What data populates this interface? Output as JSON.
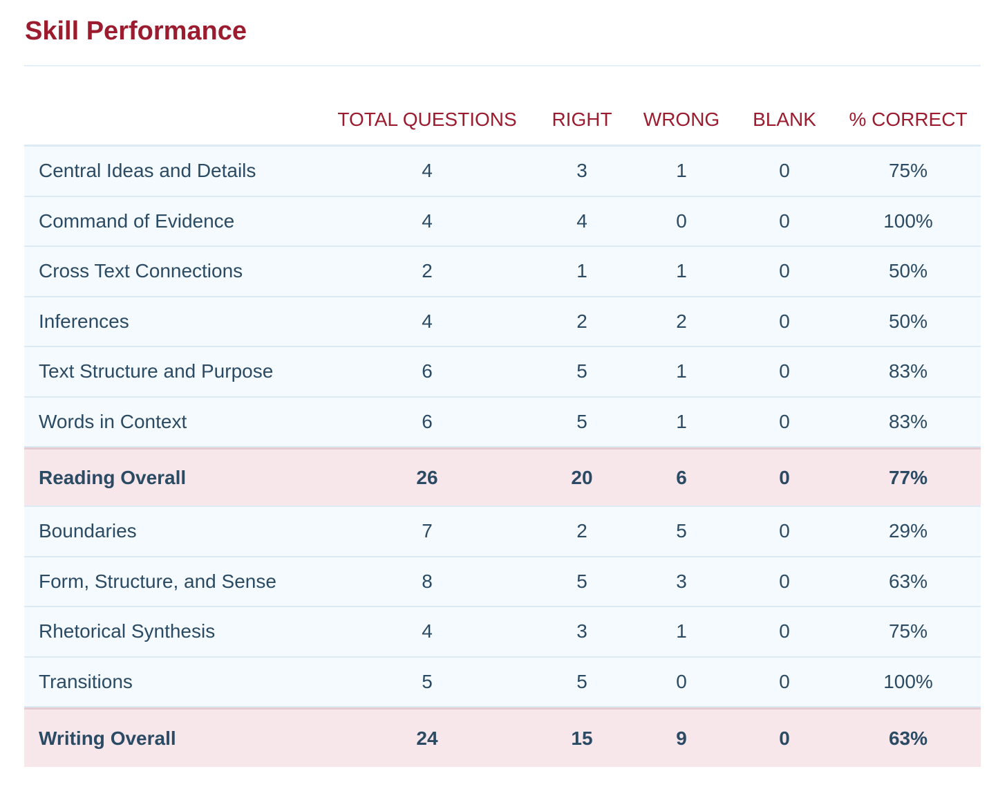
{
  "title": "Skill Performance",
  "columns": {
    "total": "TOTAL QUESTIONS",
    "right": "RIGHT",
    "wrong": "WRONG",
    "blank": "BLANK",
    "pct": "% CORRECT"
  },
  "rows": [
    {
      "name": "Central Ideas and Details",
      "total": "4",
      "right": "3",
      "wrong": "1",
      "blank": "0",
      "pct": "75%"
    },
    {
      "name": "Command of Evidence",
      "total": "4",
      "right": "4",
      "wrong": "0",
      "blank": "0",
      "pct": "100%"
    },
    {
      "name": "Cross Text Connections",
      "total": "2",
      "right": "1",
      "wrong": "1",
      "blank": "0",
      "pct": "50%"
    },
    {
      "name": "Inferences",
      "total": "4",
      "right": "2",
      "wrong": "2",
      "blank": "0",
      "pct": "50%"
    },
    {
      "name": "Text Structure and Purpose",
      "total": "6",
      "right": "5",
      "wrong": "1",
      "blank": "0",
      "pct": "83%"
    },
    {
      "name": "Words in Context",
      "total": "6",
      "right": "5",
      "wrong": "1",
      "blank": "0",
      "pct": "83%"
    },
    {
      "name": "Reading Overall",
      "total": "26",
      "right": "20",
      "wrong": "6",
      "blank": "0",
      "pct": "77%"
    },
    {
      "name": "Boundaries",
      "total": "7",
      "right": "2",
      "wrong": "5",
      "blank": "0",
      "pct": "29%"
    },
    {
      "name": "Form, Structure, and Sense",
      "total": "8",
      "right": "5",
      "wrong": "3",
      "blank": "0",
      "pct": "63%"
    },
    {
      "name": "Rhetorical Synthesis",
      "total": "4",
      "right": "3",
      "wrong": "1",
      "blank": "0",
      "pct": "75%"
    },
    {
      "name": "Transitions",
      "total": "5",
      "right": "5",
      "wrong": "0",
      "blank": "0",
      "pct": "100%"
    },
    {
      "name": "Writing Overall",
      "total": "24",
      "right": "15",
      "wrong": "9",
      "blank": "0",
      "pct": "63%"
    }
  ],
  "colors": {
    "accent": "#9b1c2e",
    "text": "#2b4a63",
    "row_bg": "#f4fafd",
    "summary_bg": "#f7e6ea"
  }
}
